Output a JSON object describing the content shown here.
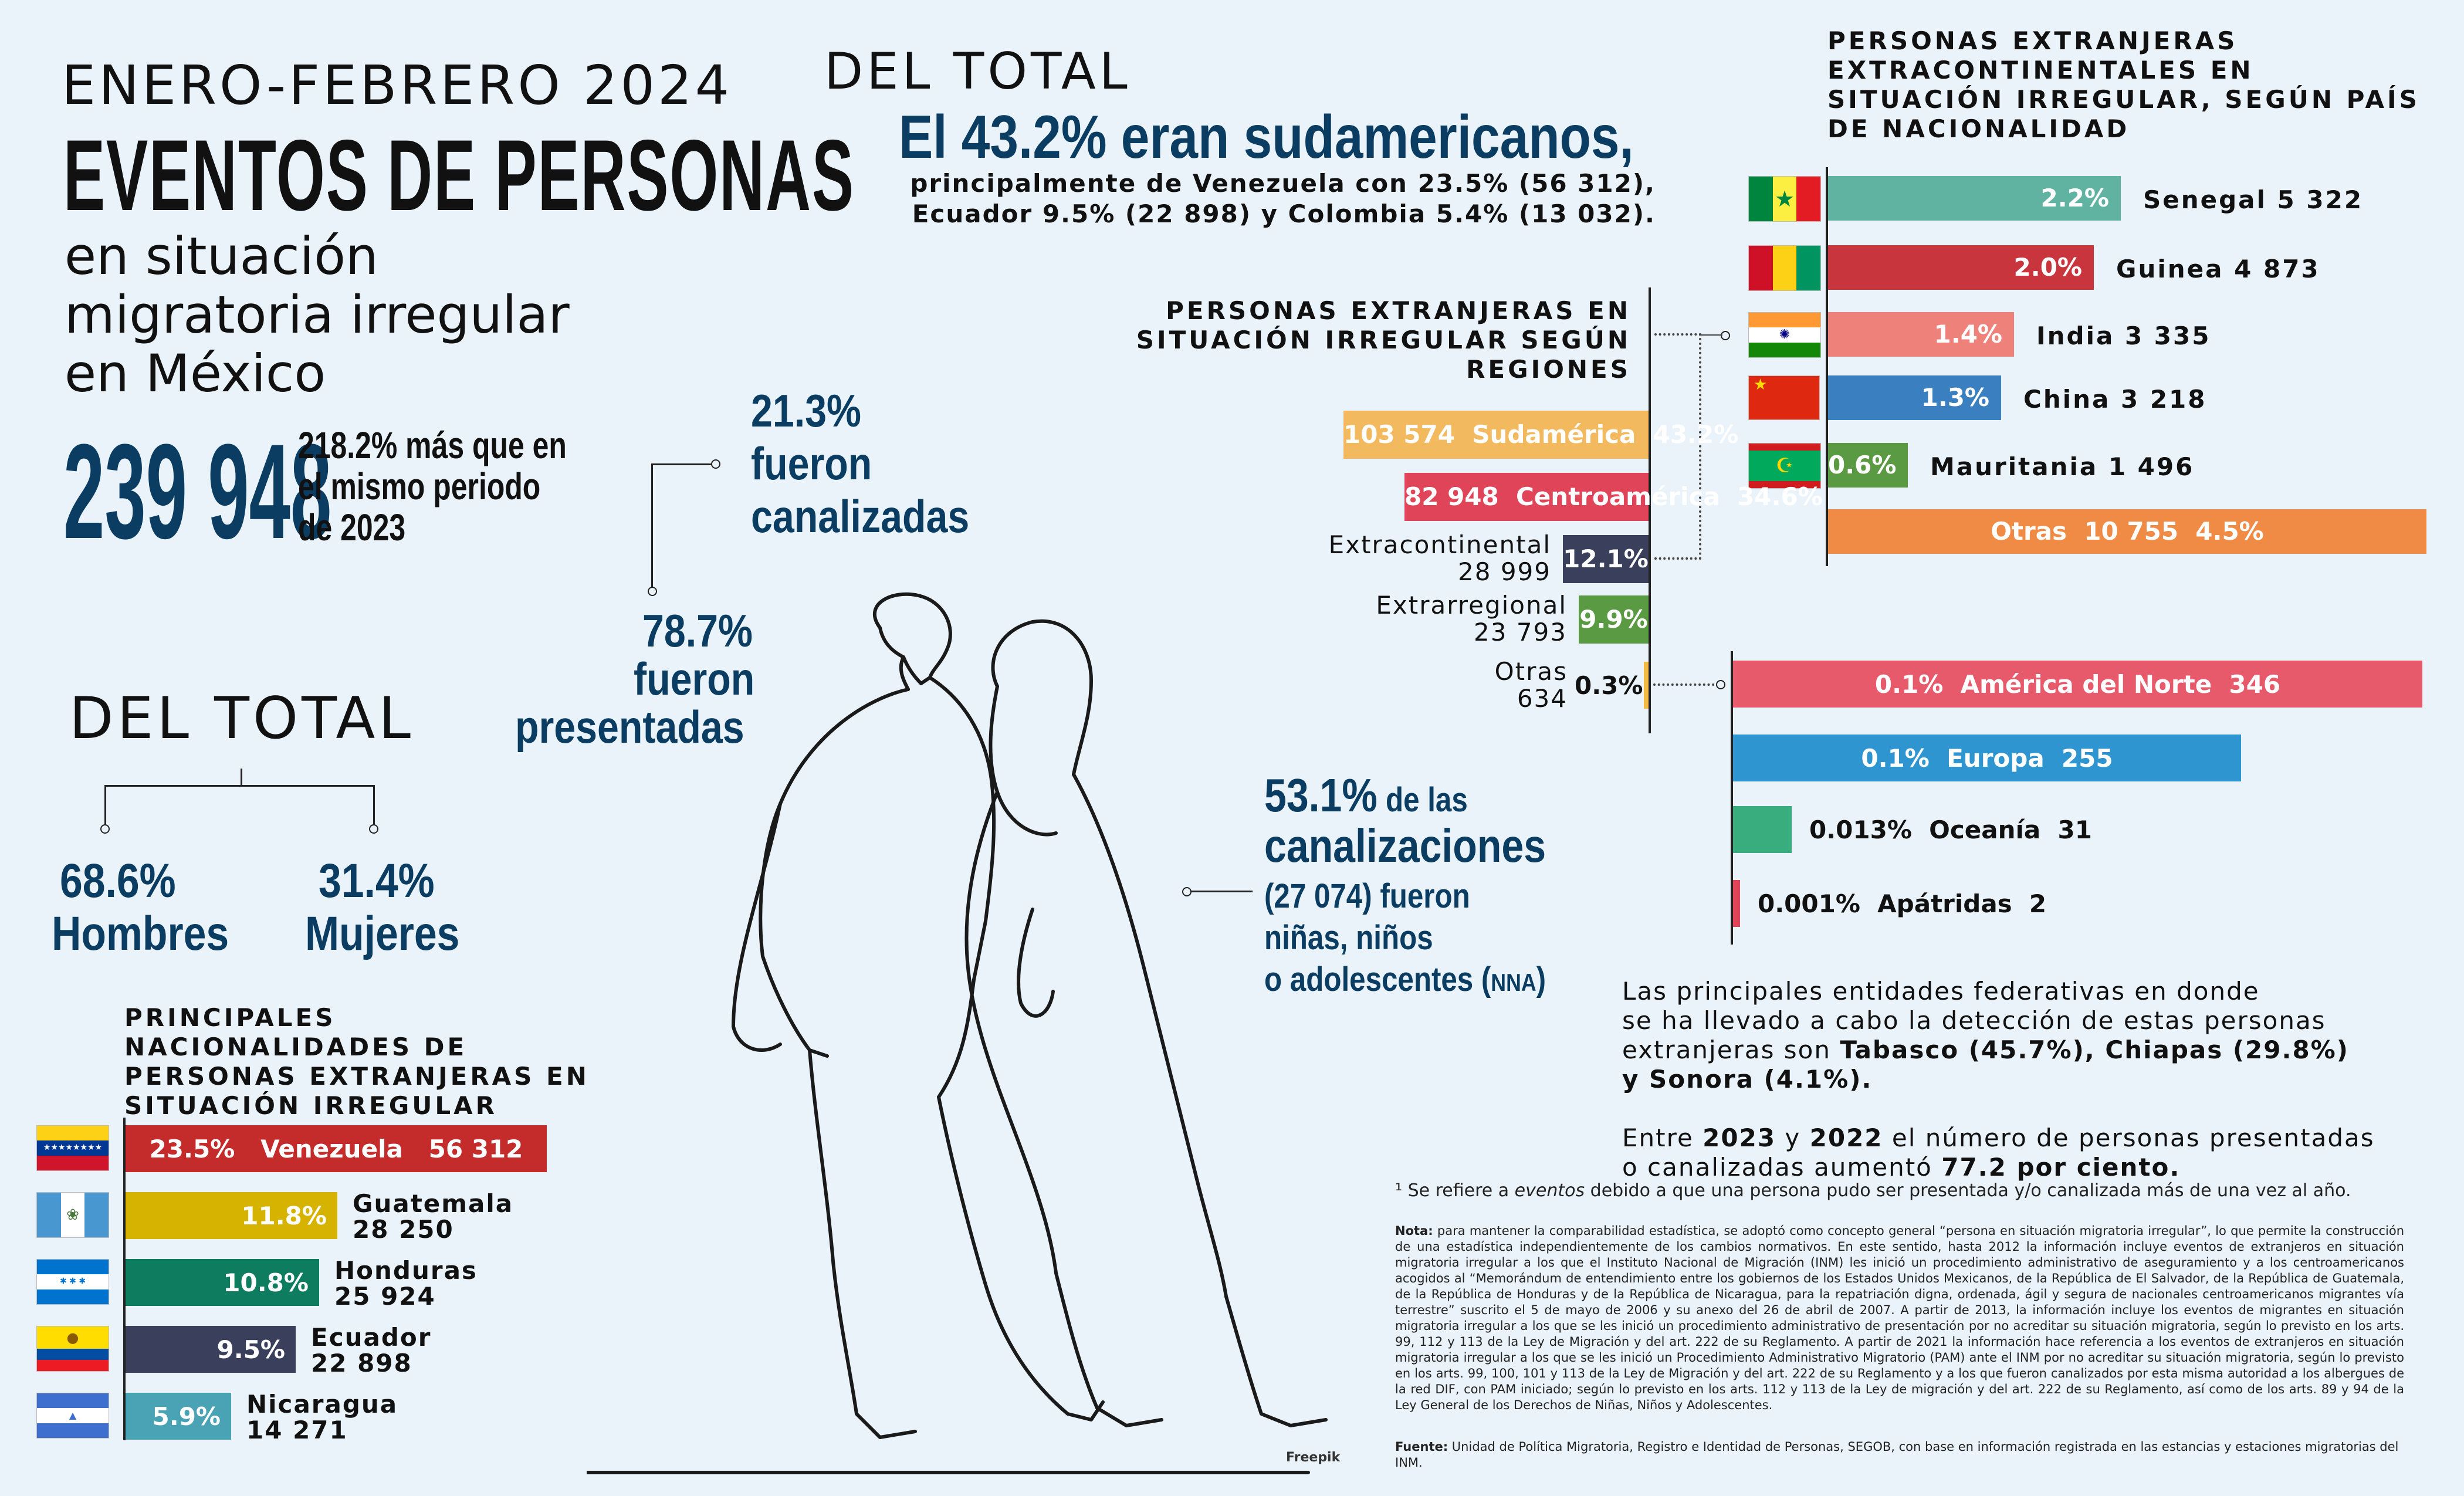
{
  "header": {
    "period": "ENERO-FEBRERO 2024",
    "title_main": "EVENTOS DE PERSONAS",
    "title_sub_1": "en situación",
    "title_sub_2": "migratoria irregular",
    "title_sub_3": "en México",
    "total": "239 948",
    "growth_1": "218.2% más que en",
    "growth_2": "el mismo periodo",
    "growth_3": "de 2023"
  },
  "presented": {
    "canal_pct": "21.3%",
    "canal_1": "fueron",
    "canal_2": "canalizadas",
    "pres_pct": "78.7%",
    "pres_1": "fueron",
    "pres_2": "presentadas"
  },
  "sex": {
    "heading": "DEL TOTAL",
    "men_pct": "68.6%",
    "men_label": "Hombres",
    "women_pct": "31.4%",
    "women_label": "Mujeres"
  },
  "top_total": {
    "heading": "DEL TOTAL",
    "highlight": "El 43.2% eran sudamericanos,",
    "detail_1": "principalmente de Venezuela con 23.5% (56 312),",
    "detail_2": "Ecuador 9.5% (22 898) y Colombia 5.4% (13 032)."
  },
  "nna": {
    "pct": "53.1%",
    "line_1": "de las",
    "line_2": "canalizaciones",
    "line_3": "(27 074) fueron",
    "line_4": "niñas, niños",
    "line_5a": "o adolescentes (",
    "line_5b": "NNA",
    "line_5c": ")"
  },
  "entities": {
    "p1": "Las principales entidades federativas en donde",
    "p2": "se ha llevado a cabo la detección de estas personas",
    "p3a": "extranjeras son ",
    "p3b": "Tabasco (45.7%), Chiapas (29.8%)",
    "p4": "y Sonora (4.1%).",
    "q1a": "Entre ",
    "q1b": "2023",
    "q1c": " y ",
    "q1d": "2022",
    "q1e": " el número de personas presentadas",
    "q2a": "o canalizadas aumentó ",
    "q2b": "77.2 por ciento."
  },
  "notes": {
    "footnote_1": "¹ Se refiere a ",
    "footnote_em": "eventos",
    "footnote_2": " debido a que una persona pudo ser presentada y/o canalizada más de una vez al año.",
    "nota_label": "Nota:",
    "nota_text": " para mantener la comparabilidad estadística, se adoptó como concepto general “persona en situación migratoria irregular”, lo que permite la construcción de una estadística independientemente de los cambios normativos. En este sentido, hasta 2012 la información incluye eventos de extranjeros en situación migratoria irregular a los que el Instituto Nacional de Migración (INM) les inició un procedimiento administrativo de aseguramiento y a los centroamericanos acogidos al “Memorándum de entendimiento entre los gobiernos de los Estados Unidos Mexicanos, de la República de El Salvador, de la República de Guatemala, de la República de Honduras y de la República de Nicaragua, para la repatriación digna, ordenada, ágil y segura de nacionales centroamericanos migrantes vía terrestre” suscrito el 5 de mayo de 2006 y su anexo del 26 de abril de 2007. A partir de 2013, la información incluye los eventos de migrantes en situación migratoria irregular a los que se les inició un procedimiento administrativo de presentación por no acreditar su situación migratoria, según lo previsto en los arts. 99, 112 y 113 de la Ley de Migración y del art. 222 de su Reglamento. A partir de 2021 la información hace referencia a los eventos de extranjeros en situación migratoria irregular a los que se les inició un Procedimiento Administrativo Migratorio (PAM) ante el INM por no acreditar su situación migratoria, según lo previsto en los arts. 99, 100, 101 y 113 de la Ley de Migración y del art. 222 de su Reglamento y a los que fueron canalizados por esta misma autoridad a los albergues de la red DIF, con PAM iniciado; según lo previsto en los arts. 112 y 113 de la Ley de migración y del art. 222 de su Reglamento, así como de los arts. 89 y 94 de la Ley General de los Derechos de Niñas, Niños y Adolescentes.",
    "fuente_label": "Fuente:",
    "fuente_text": " Unidad de Política Migratoria, Registro e Identidad de Personas, SEGOB, con base en información registrada en las estancias y estaciones migratorias del INM.",
    "credit": "Freepik"
  },
  "colors": {
    "title_blue": "#0b3d62",
    "sudamerica": "#f2b95e",
    "centroamerica": "#e04458",
    "extracontinental": "#3a3f5c",
    "extrarregional": "#5a9a42",
    "otras_region": "#f2b944"
  },
  "chart_data": [
    {
      "type": "bar",
      "title": "PERSONAS EXTRANJERAS EN SITUACIÓN IRREGULAR SEGÚN REGIONES",
      "categories": [
        "Sudamérica",
        "Centroamérica",
        "Extracontinental",
        "Extrarregional",
        "Otras"
      ],
      "values": [
        103574,
        82948,
        28999,
        23793,
        634
      ],
      "value_labels": [
        "103 574",
        "82 948",
        "28 999",
        "23 793",
        "634"
      ],
      "percents": [
        43.2,
        34.6,
        12.1,
        9.9,
        0.3
      ],
      "percent_labels": [
        "43.2%",
        "34.6%",
        "12.1%",
        "9.9%",
        "0.3%"
      ],
      "colors": [
        "#f2b95e",
        "#e04458",
        "#3a3f5c",
        "#5a9a42",
        "#f2b944"
      ]
    },
    {
      "type": "bar",
      "title": "PERSONAS EXTRANJERAS EXTRACONTINENTALES EN SITUACIÓN IRREGULAR, SEGÚN PAÍS DE NACIONALIDAD",
      "categories": [
        "Senegal",
        "Guinea",
        "India",
        "China",
        "Mauritania",
        "Otras"
      ],
      "values": [
        5322,
        4873,
        3335,
        3218,
        1496,
        10755
      ],
      "value_labels": [
        "5 322",
        "4 873",
        "3 335",
        "3 218",
        "1 496",
        "10 755"
      ],
      "percents": [
        2.2,
        2.0,
        1.4,
        1.3,
        0.6,
        4.5
      ],
      "percent_labels": [
        "2.2%",
        "2.0%",
        "1.4%",
        "1.3%",
        "0.6%",
        "4.5%"
      ],
      "colors": [
        "#5fb3a0",
        "#c9353d",
        "#ee827a",
        "#3a7fbf",
        "#5a9a42",
        "#f08b45"
      ]
    },
    {
      "type": "bar",
      "categories": [
        "América del Norte",
        "Europa",
        "Oceanía",
        "Apátridas"
      ],
      "values": [
        346,
        255,
        31,
        2
      ],
      "value_labels": [
        "346",
        "255",
        "31",
        "2"
      ],
      "percents": [
        0.1,
        0.1,
        0.013,
        0.001
      ],
      "percent_labels": [
        "0.1%",
        "0.1%",
        "0.013%",
        "0.001%"
      ],
      "colors": [
        "#e75a6b",
        "#2f95d0",
        "#3aad7e",
        "#e04458"
      ]
    },
    {
      "type": "bar",
      "title": "PRINCIPALES NACIONALIDADES DE PERSONAS EXTRANJERAS EN SITUACIÓN IRREGULAR",
      "categories": [
        "Venezuela",
        "Guatemala",
        "Honduras",
        "Ecuador",
        "Nicaragua"
      ],
      "values": [
        56312,
        28250,
        25924,
        22898,
        14271
      ],
      "value_labels": [
        "56 312",
        "28 250",
        "25 924",
        "22 898",
        "14 271"
      ],
      "percents": [
        23.5,
        11.8,
        10.8,
        9.5,
        5.9
      ],
      "percent_labels": [
        "23.5%",
        "11.8%",
        "10.8%",
        "9.5%",
        "5.9%"
      ],
      "colors": [
        "#c42b2b",
        "#d6b300",
        "#0e7d5f",
        "#3a3f5c",
        "#4aa3b5"
      ]
    }
  ]
}
